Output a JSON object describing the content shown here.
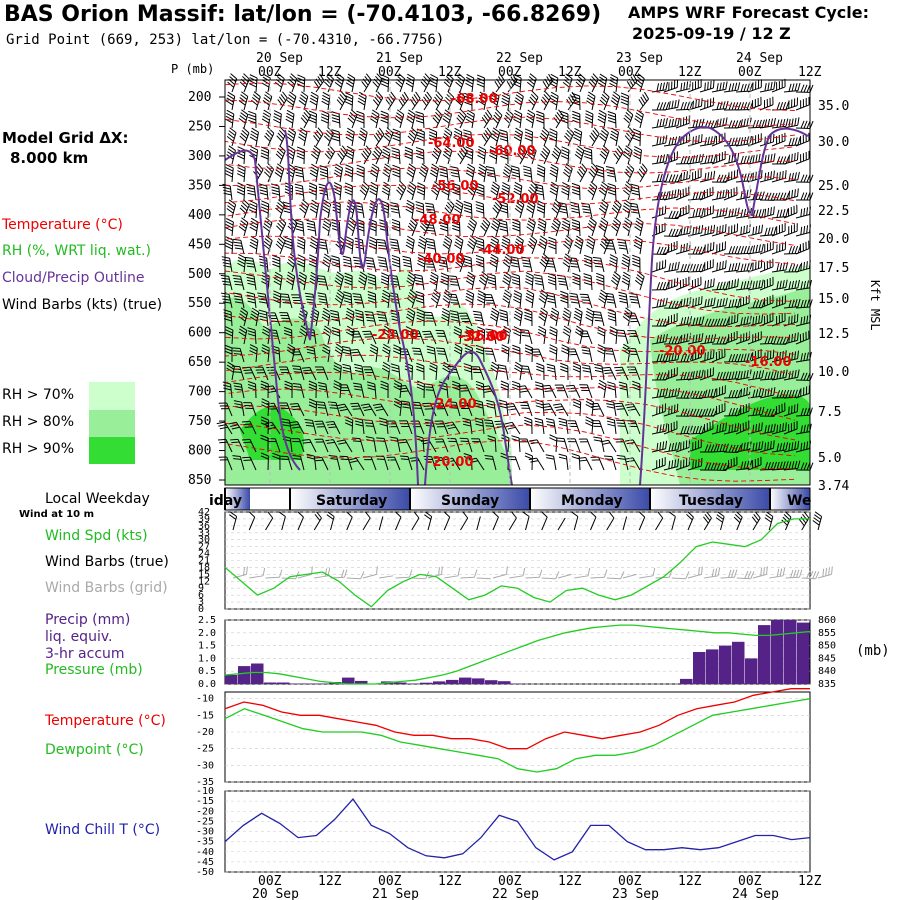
{
  "header": {
    "title": "BAS Orion Massif:  lat/lon = (-70.4103, -66.8269)",
    "subtitle": "Grid Point (669, 253) lat/lon = (-70.4310, -66.7756)",
    "cycle_line1": "AMPS WRF Forecast Cycle:",
    "cycle_line2": "2025-09-19 / 12  Z"
  },
  "left_legend": {
    "model_grid": "Model Grid ΔX:",
    "model_grid_value": "8.000 km",
    "temperature": "Temperature (°C)",
    "rh": "RH (%, WRT liq. wat.)",
    "cloud": "Cloud/Precip Outline",
    "wind": "Wind Barbs (kts) (true)",
    "rh70": "RH > 70%",
    "rh80": "RH > 80%",
    "rh90": "RH > 90%",
    "local_weekday": "Local Weekday",
    "wind_10m": "Wind at 10 m",
    "wind_spd": "Wind Spd (kts)",
    "wind_barbs_true": "Wind Barbs (true)",
    "wind_barbs_grid": "Wind Barbs (grid)",
    "precip1": "Precip (mm)",
    "precip2": "liq. equiv.",
    "precip3": "3-hr accum",
    "pressure": "Pressure (mb)",
    "temperature2": "Temperature (°C)",
    "dewpoint": "Dewpoint (°C)",
    "windchill": "Wind Chill T (°C)",
    "mb_unit": "(mb)",
    "p_unit": "P (mb)",
    "kft": "Kft MSL"
  },
  "colors": {
    "rh70": "#ccffcc",
    "rh80": "#99ee99",
    "rh90": "#33dd33",
    "temp": "#ee0000",
    "cloud": "#663399",
    "precip": "#552288",
    "green": "#22cc22",
    "blue": "#2222aa",
    "grey": "#aaaaaa"
  },
  "chart_data": {
    "type": "line",
    "time_axis": {
      "top_dates": [
        "20 Sep",
        "21 Sep",
        "22 Sep",
        "23 Sep",
        "24 Sep"
      ],
      "hour_labels": [
        "00Z",
        "12Z",
        "00Z",
        "12Z",
        "00Z",
        "12Z",
        "00Z",
        "12Z",
        "00Z",
        "12Z"
      ],
      "bottom_dates": [
        "20 Sep",
        "21 Sep",
        "22 Sep",
        "23 Sep",
        "24 Sep"
      ],
      "weekdays": [
        "iday",
        "Saturday",
        "Sunday",
        "Monday",
        "Tuesday",
        "We"
      ]
    },
    "pressure_levels": [
      "200",
      "250",
      "300",
      "350",
      "400",
      "450",
      "500",
      "550",
      "600",
      "650",
      "700",
      "750",
      "800",
      "850"
    ],
    "height_labels": [
      "35.0",
      "30.0",
      "25.0",
      "22.5",
      "20.0",
      "17.5",
      "15.0",
      "12.5",
      "10.0",
      "7.5",
      "5.0",
      "3.74"
    ],
    "temp_contours": [
      {
        "label": "-68.00"
      },
      {
        "label": "-64.00"
      },
      {
        "label": "-60.00"
      },
      {
        "label": "-56.00"
      },
      {
        "label": "-52.00"
      },
      {
        "label": "-48.00"
      },
      {
        "label": "-44.00"
      },
      {
        "label": "-40.00"
      },
      {
        "label": "-36.00"
      },
      {
        "label": "-32.00"
      },
      {
        "label": "-28.00"
      },
      {
        "label": "-24.00"
      },
      {
        "label": "-20.00"
      },
      {
        "label": "-20.00"
      },
      {
        "label": "-16.00"
      }
    ],
    "wind_speed": {
      "ticks": [
        "42",
        "39",
        "36",
        "33",
        "30",
        "27",
        "24",
        "21",
        "18",
        "15",
        "12",
        "9",
        "6",
        "3",
        "0"
      ],
      "values": [
        18,
        12,
        6,
        9,
        14,
        15,
        16,
        12,
        6,
        1,
        8,
        12,
        15,
        14,
        9,
        4,
        6,
        10,
        9,
        5,
        3,
        8,
        9,
        6,
        4,
        6,
        10,
        14,
        20,
        27,
        29,
        28,
        27,
        30,
        37,
        39,
        39
      ]
    },
    "precip": {
      "ticks": [
        "2.5",
        "2.0",
        "1.5",
        "1.0",
        "0.5",
        "0.0"
      ],
      "values": [
        0.35,
        0.7,
        0.8,
        0.06,
        0.06,
        0.02,
        0.02,
        0.02,
        0.08,
        0.25,
        0.12,
        0.02,
        0.1,
        0.06,
        0.02,
        0.05,
        0.1,
        0.16,
        0.25,
        0.22,
        0.15,
        0.11,
        0.02,
        0,
        0,
        0,
        0,
        0,
        0,
        0,
        0,
        0,
        0,
        0,
        0,
        0.2,
        1.25,
        1.35,
        1.5,
        1.65,
        1.0,
        2.3,
        2.5,
        2.5,
        2.4
      ],
      "pressure_ticks": [
        "860",
        "855",
        "850",
        "845",
        "840",
        "835"
      ],
      "pressure": [
        838.5,
        839,
        839.5,
        839.5,
        839,
        838,
        837,
        836,
        835.5,
        835,
        835,
        835,
        835.5,
        836,
        836.5,
        837.5,
        838.5,
        840,
        842,
        844,
        846,
        848,
        850,
        852,
        853.5,
        855,
        856,
        857,
        857.5,
        858,
        858,
        857.5,
        857,
        856.5,
        856,
        855.5,
        855,
        855,
        854.5,
        854,
        854,
        854.5,
        855,
        855.5
      ]
    },
    "temperature": {
      "ticks": [
        "-10",
        "-15",
        "-20",
        "-25",
        "-30",
        "-35"
      ],
      "temp": [
        -13,
        -11,
        -12,
        -14,
        -15,
        -15,
        -16,
        -17,
        -18,
        -20,
        -21,
        -21,
        -22,
        -22,
        -23,
        -25,
        -25,
        -22,
        -20,
        -21,
        -22,
        -21,
        -20,
        -18,
        -15,
        -13,
        -12,
        -11,
        -9,
        -8,
        -7,
        -7
      ],
      "dewpoint": [
        -16,
        -13,
        -15,
        -17,
        -19,
        -20,
        -20,
        -20,
        -21,
        -23,
        -24,
        -25,
        -26,
        -27,
        -28,
        -31,
        -32,
        -31,
        -28,
        -27,
        -27,
        -26,
        -24,
        -21,
        -18,
        -15,
        -14,
        -13,
        -12,
        -11,
        -10
      ]
    },
    "windchill": {
      "ticks": [
        "-10",
        "-15",
        "-20",
        "-25",
        "-30",
        "-35",
        "-40",
        "-45",
        "-50"
      ],
      "values": [
        -35,
        -27,
        -21,
        -26,
        -33,
        -32,
        -24,
        -14,
        -27,
        -31,
        -38,
        -42,
        -43,
        -41,
        -33,
        -22,
        -25,
        -38,
        -44,
        -40,
        -27,
        -27,
        -35,
        -39,
        -39,
        -38,
        -39,
        -38,
        -35,
        -32,
        -32,
        -34,
        -33
      ]
    }
  }
}
